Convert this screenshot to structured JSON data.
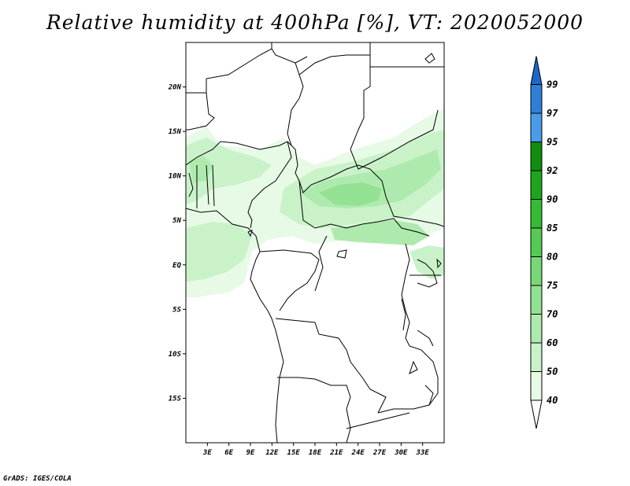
{
  "title": "Relative humidity at 400hPa [%], VT: 2020052000",
  "credit": "GrADS: IGES/COLA",
  "map": {
    "lon_range": [
      0,
      36
    ],
    "lat_range": [
      -20,
      25
    ],
    "lat_ticks": [
      {
        "value": 20,
        "label": "20N"
      },
      {
        "value": 15,
        "label": "15N"
      },
      {
        "value": 10,
        "label": "10N"
      },
      {
        "value": 5,
        "label": "5N"
      },
      {
        "value": 0,
        "label": "EQ"
      },
      {
        "value": -5,
        "label": "5S"
      },
      {
        "value": -10,
        "label": "10S"
      },
      {
        "value": -15,
        "label": "15S"
      }
    ],
    "lon_ticks": [
      {
        "value": 3,
        "label": "3E"
      },
      {
        "value": 6,
        "label": "6E"
      },
      {
        "value": 9,
        "label": "9E"
      },
      {
        "value": 12,
        "label": "12E"
      },
      {
        "value": 15,
        "label": "15E"
      },
      {
        "value": 18,
        "label": "18E"
      },
      {
        "value": 21,
        "label": "21E"
      },
      {
        "value": 24,
        "label": "24E"
      },
      {
        "value": 27,
        "label": "27E"
      },
      {
        "value": 30,
        "label": "30E"
      },
      {
        "value": 33,
        "label": "33E"
      }
    ]
  },
  "colorbar": {
    "labels": [
      "40",
      "50",
      "60",
      "70",
      "75",
      "80",
      "85",
      "90",
      "92",
      "95",
      "97",
      "99"
    ],
    "colors": [
      "#ffffff",
      "#e6fae6",
      "#c9f2c9",
      "#aeeaae",
      "#93e193",
      "#78d878",
      "#55ca55",
      "#34bd34",
      "#1da61d",
      "#0f8e0f",
      "#4a9cea",
      "#2f7fd9",
      "#1e66c8"
    ]
  },
  "humidity_colors": {
    "level_50": "#e6fae6",
    "level_60": "#c9f2c9",
    "level_70": "#aeeaae",
    "level_75": "#93e193",
    "level_80": "#78d878"
  }
}
